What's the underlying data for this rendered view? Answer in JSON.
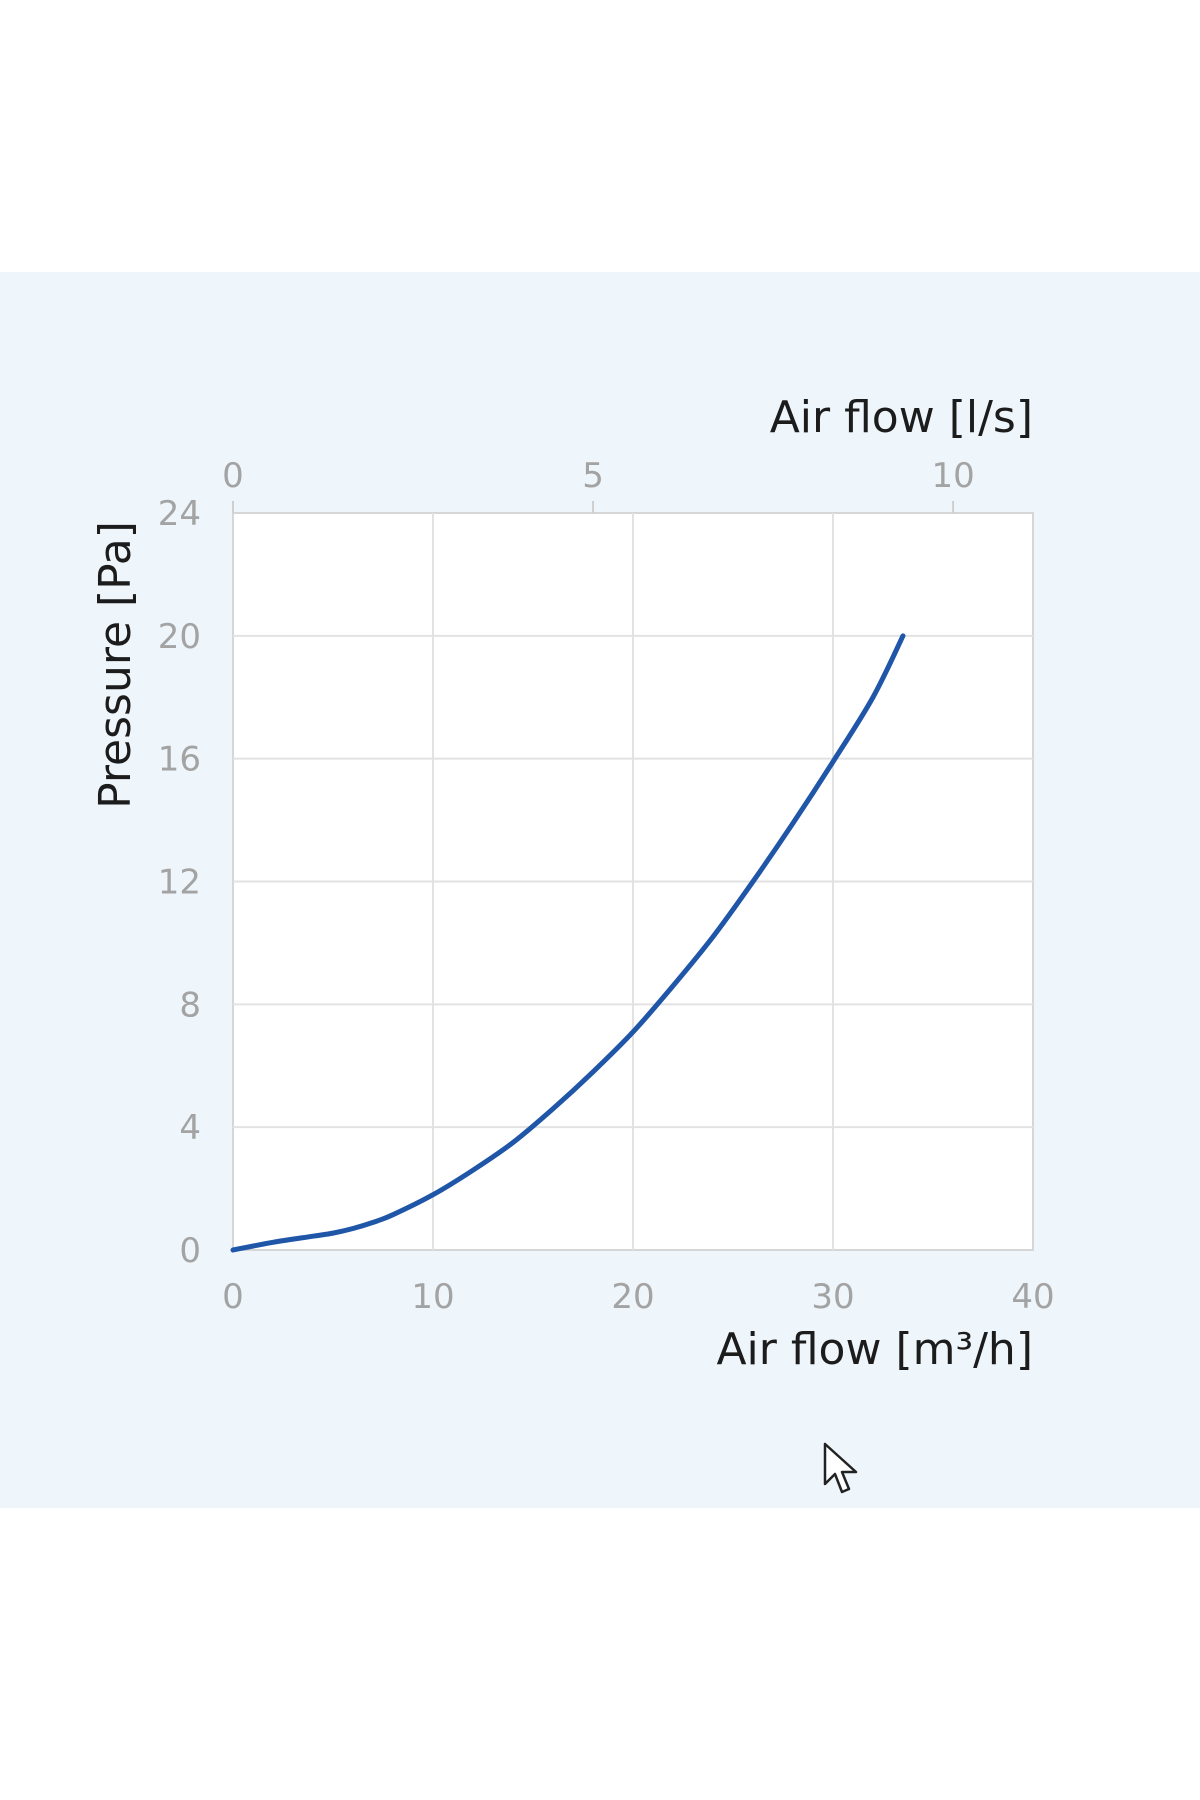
{
  "chart_data": {
    "type": "line",
    "xlabel": "Air flow [m³/h]",
    "x2label": "Air flow [l/s]",
    "ylabel": "Pressure [Pa]",
    "xlim": [
      0,
      40
    ],
    "x2lim": [
      0,
      11.11
    ],
    "ylim": [
      0,
      24
    ],
    "x_ticks": [
      "0",
      "10",
      "20",
      "30",
      "40"
    ],
    "x2_ticks": [
      "0",
      "5",
      "10"
    ],
    "y_ticks": [
      "0",
      "4",
      "8",
      "12",
      "16",
      "20",
      "24"
    ],
    "grid": true,
    "line_color": "#1f56a8",
    "series": [
      {
        "x": [
          0,
          2,
          4,
          5,
          6,
          7,
          8,
          10,
          12,
          14,
          16,
          18,
          20,
          22,
          24,
          26,
          28,
          30,
          32,
          33.5
        ],
        "values": [
          0,
          0.25,
          0.45,
          0.55,
          0.7,
          0.9,
          1.15,
          1.8,
          2.6,
          3.5,
          4.6,
          5.8,
          7.1,
          8.6,
          10.2,
          12.0,
          13.9,
          15.9,
          18.0,
          20.0
        ]
      }
    ]
  },
  "background_color": "#eef6fc",
  "cursor": {
    "icon": "mouse-pointer-icon"
  }
}
